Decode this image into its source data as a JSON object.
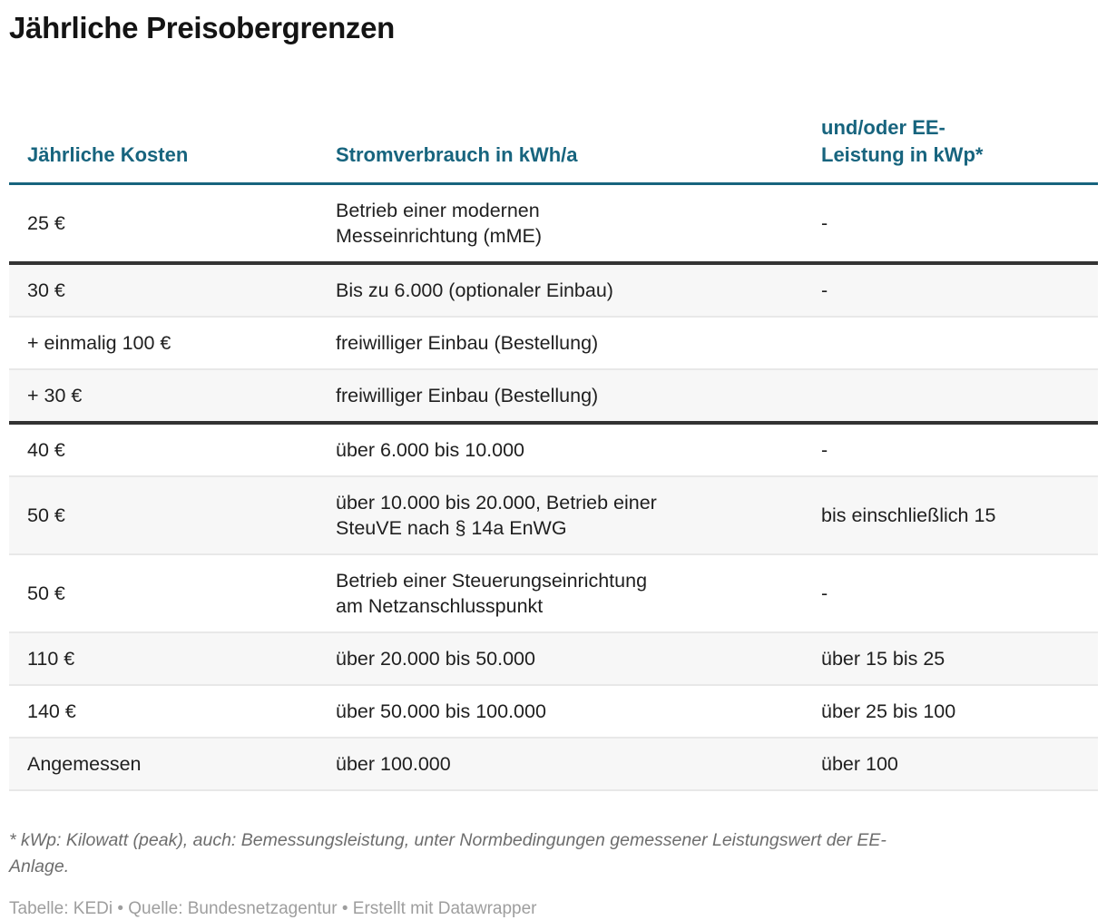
{
  "title": "Jährliche Preisobergrenzen",
  "chart_data": {
    "type": "table",
    "title": "Jährliche Preisobergrenzen",
    "columns": [
      "Jährliche Kosten",
      "Stromverbrauch in kWh/a",
      "und/oder EE-Leistung in kWp*"
    ],
    "rows": [
      [
        "25 €",
        "Betrieb einer modernen Messeinrichtung (mME)",
        "-"
      ],
      [
        "30 €",
        "Bis zu 6.000 (optionaler Einbau)",
        "-"
      ],
      [
        "+ einmalig 100 €",
        "freiwilliger Einbau (Bestellung)",
        ""
      ],
      [
        "+ 30 €",
        "freiwilliger Einbau (Bestellung)",
        ""
      ],
      [
        "40 €",
        "über 6.000 bis 10.000",
        "-"
      ],
      [
        "50 €",
        "über 10.000 bis 20.000, Betrieb einer SteuVE nach § 14a EnWG",
        "bis einschließlich 15"
      ],
      [
        "50 €",
        "Betrieb einer Steuerungseinrichtung am Netzanschlusspunkt",
        "-"
      ],
      [
        "110 €",
        "über 20.000 bis 50.000",
        "über 15 bis 25"
      ],
      [
        "140 €",
        "über 50.000 bis 100.000",
        "über 25 bis 100"
      ],
      [
        "Angemessen",
        "über 100.000",
        "über 100"
      ]
    ]
  },
  "table": {
    "headers": {
      "col1": "Jährliche Kosten",
      "col2": "Stromverbrauch in kWh/a",
      "col3": "und/oder EE-\nLeistung in kWp*"
    },
    "rows": [
      {
        "cells": [
          "25 €",
          "Betrieb einer modernen\nMesseinrichtung (mME)",
          "-"
        ],
        "thick_top": false
      },
      {
        "cells": [
          "30 €",
          "Bis zu 6.000 (optionaler Einbau)",
          "-"
        ],
        "thick_top": true
      },
      {
        "cells": [
          "+ einmalig 100 €",
          "freiwilliger Einbau (Bestellung)",
          ""
        ],
        "thick_top": false
      },
      {
        "cells": [
          "+ 30 €",
          "freiwilliger Einbau (Bestellung)",
          ""
        ],
        "thick_top": false
      },
      {
        "cells": [
          "40 €",
          "über 6.000 bis 10.000",
          "-"
        ],
        "thick_top": true
      },
      {
        "cells": [
          "50 €",
          "über 10.000 bis 20.000, Betrieb einer\nSteuVE nach § 14a EnWG",
          "bis einschließlich 15"
        ],
        "thick_top": false
      },
      {
        "cells": [
          "50 €",
          "Betrieb einer Steuerungseinrichtung\nam Netzanschlusspunkt",
          "-"
        ],
        "thick_top": false
      },
      {
        "cells": [
          "110 €",
          "über 20.000 bis 50.000",
          "über 15 bis 25"
        ],
        "thick_top": false
      },
      {
        "cells": [
          "140 €",
          "über 50.000 bis 100.000",
          "über 25 bis 100"
        ],
        "thick_top": false
      },
      {
        "cells": [
          "Angemessen",
          "über 100.000",
          "über 100"
        ],
        "thick_top": false
      }
    ]
  },
  "footer": {
    "footnote": "* kWp: Kilowatt (peak), auch: Bemessungsleistung, unter Normbedingungen gemessener Leistungswert der EE-\nAnlage.",
    "credit_table": "Tabelle: KEDi",
    "credit_source": "Quelle: Bundesnetzagentur",
    "credit_tool": "Erstellt mit Datawrapper",
    "separator": " • "
  },
  "colors": {
    "header_accent": "#17647E",
    "section_border": "#333333",
    "row_divider": "#e8e8e8",
    "row_alt_background": "#f7f7f7",
    "body_text": "#1f1f1f",
    "footnote_text": "#6d6d6d",
    "credits_text": "#9e9e9e"
  }
}
